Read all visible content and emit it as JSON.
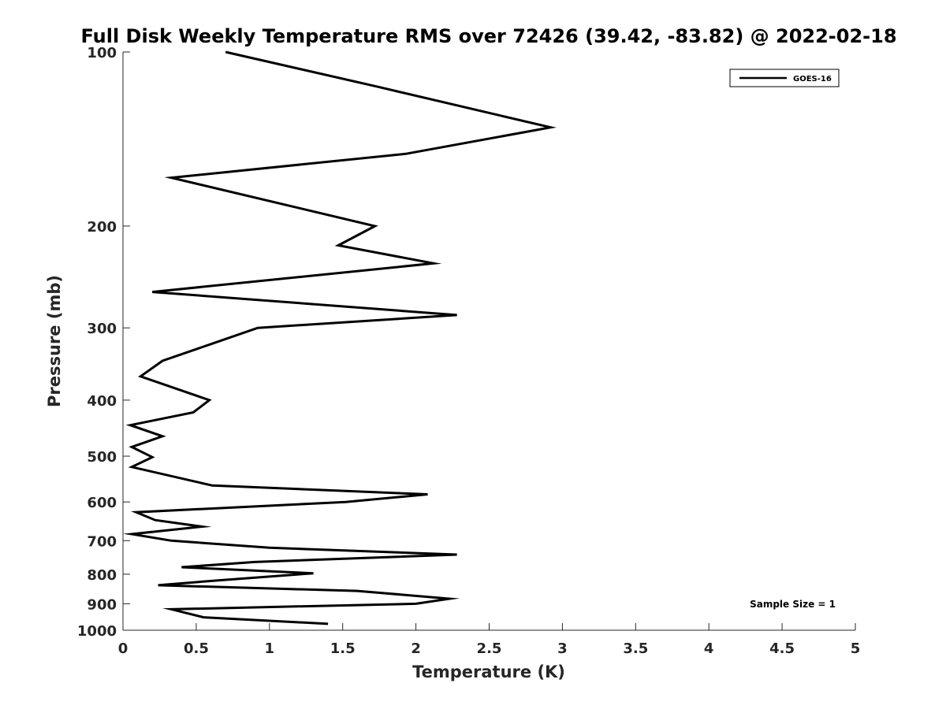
{
  "chart_data": {
    "type": "line",
    "title": "Full Disk Weekly Temperature RMS over 72426 (39.42, -83.82) @ 2022-02-18",
    "xlabel": "Temperature (K)",
    "ylabel": "Pressure (mb)",
    "xlim": [
      0,
      5
    ],
    "ylim": [
      100,
      1000
    ],
    "y_scale": "log",
    "y_reversed": true,
    "xticks": [
      0,
      0.5,
      1,
      1.5,
      2,
      2.5,
      3,
      3.5,
      4,
      4.5,
      5
    ],
    "xtick_labels": [
      "0",
      "0.5",
      "1",
      "1.5",
      "2",
      "2.5",
      "3",
      "3.5",
      "4",
      "4.5",
      "5"
    ],
    "yticks": [
      100,
      200,
      300,
      400,
      500,
      600,
      700,
      800,
      900,
      1000
    ],
    "ytick_labels": [
      "100",
      "200",
      "300",
      "400",
      "500",
      "600",
      "700",
      "800",
      "900",
      "1000"
    ],
    "grid": false,
    "legend_position": "top-right",
    "series": [
      {
        "name": "GOES-16",
        "color": "#000000",
        "points": [
          [
            0.7,
            100
          ],
          [
            1.75,
            115
          ],
          [
            2.92,
            135
          ],
          [
            1.93,
            150
          ],
          [
            0.33,
            165
          ],
          [
            1.72,
            200
          ],
          [
            1.47,
            216
          ],
          [
            2.12,
            232
          ],
          [
            0.2,
            260
          ],
          [
            2.28,
            285
          ],
          [
            0.92,
            300
          ],
          [
            0.6,
            320
          ],
          [
            0.27,
            342
          ],
          [
            0.12,
            364
          ],
          [
            0.59,
            400
          ],
          [
            0.48,
            420
          ],
          [
            0.05,
            442
          ],
          [
            0.27,
            462
          ],
          [
            0.06,
            482
          ],
          [
            0.2,
            502
          ],
          [
            0.06,
            522
          ],
          [
            0.61,
            562
          ],
          [
            2.08,
            582
          ],
          [
            1.52,
            600
          ],
          [
            0.09,
            625
          ],
          [
            0.22,
            645
          ],
          [
            0.54,
            662
          ],
          [
            0.06,
            682
          ],
          [
            0.33,
            700
          ],
          [
            1.0,
            720
          ],
          [
            2.28,
            740
          ],
          [
            0.9,
            762
          ],
          [
            0.4,
            778
          ],
          [
            1.3,
            797
          ],
          [
            0.65,
            820
          ],
          [
            0.24,
            836
          ],
          [
            1.6,
            855
          ],
          [
            2.23,
            882
          ],
          [
            2.0,
            900
          ],
          [
            0.33,
            920
          ],
          [
            0.55,
            950
          ],
          [
            1.4,
            975
          ]
        ]
      }
    ],
    "annotations": [
      "Sample Size = 1"
    ]
  }
}
